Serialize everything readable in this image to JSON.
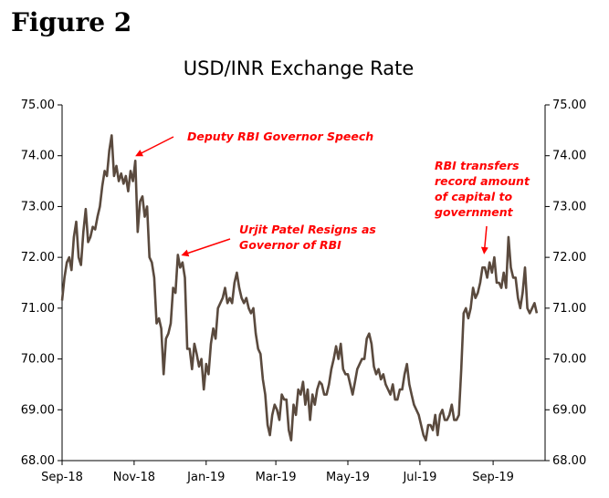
{
  "figure_label": "Figure 2",
  "chart_data": {
    "type": "line",
    "title": "USD/INR Exchange Rate",
    "xlabel": "",
    "ylabel": "",
    "ylim": [
      68.0,
      75.0
    ],
    "yticks": [
      "68.00",
      "69.00",
      "70.00",
      "71.00",
      "72.00",
      "73.00",
      "74.00",
      "75.00"
    ],
    "xlim": [
      "2018-09-01",
      "2019-10-15"
    ],
    "xticks": [
      {
        "date": "2018-09-01",
        "label": "Sep-18"
      },
      {
        "date": "2018-11-01",
        "label": "Nov-18"
      },
      {
        "date": "2019-01-01",
        "label": "Jan-19"
      },
      {
        "date": "2019-03-01",
        "label": "Mar-19"
      },
      {
        "date": "2019-05-01",
        "label": "May-19"
      },
      {
        "date": "2019-07-01",
        "label": "Jul-19"
      },
      {
        "date": "2019-09-01",
        "label": "Sep-19"
      }
    ],
    "series_color": "#5a4a3e",
    "annotation_color": "#ff0000",
    "series": [
      {
        "x": [
          "2018-09-01",
          "2018-09-03",
          "2018-09-05",
          "2018-09-07",
          "2018-09-09",
          "2018-09-11",
          "2018-09-13",
          "2018-09-15",
          "2018-09-17",
          "2018-09-19",
          "2018-09-21",
          "2018-09-23",
          "2018-09-25",
          "2018-09-27",
          "2018-09-29",
          "2018-10-01",
          "2018-10-03",
          "2018-10-05",
          "2018-10-07",
          "2018-10-09",
          "2018-10-11",
          "2018-10-13",
          "2018-10-15",
          "2018-10-17",
          "2018-10-19",
          "2018-10-21",
          "2018-10-23",
          "2018-10-25",
          "2018-10-27",
          "2018-10-29",
          "2018-10-31",
          "2018-11-02",
          "2018-11-04",
          "2018-11-06",
          "2018-11-08",
          "2018-11-10",
          "2018-11-12",
          "2018-11-14",
          "2018-11-16",
          "2018-11-18",
          "2018-11-20",
          "2018-11-22",
          "2018-11-24",
          "2018-11-26",
          "2018-11-28",
          "2018-11-30",
          "2018-12-02",
          "2018-12-04",
          "2018-12-06",
          "2018-12-08",
          "2018-12-10",
          "2018-12-12",
          "2018-12-14",
          "2018-12-16",
          "2018-12-18",
          "2018-12-20",
          "2018-12-22",
          "2018-12-24",
          "2018-12-26",
          "2018-12-28",
          "2018-12-30",
          "2019-01-01",
          "2019-01-03",
          "2019-01-05",
          "2019-01-07",
          "2019-01-09",
          "2019-01-11",
          "2019-01-13",
          "2019-01-15",
          "2019-01-17",
          "2019-01-19",
          "2019-01-21",
          "2019-01-23",
          "2019-01-25",
          "2019-01-27",
          "2019-01-29",
          "2019-01-31",
          "2019-02-02",
          "2019-02-04",
          "2019-02-06",
          "2019-02-08",
          "2019-02-10",
          "2019-02-12",
          "2019-02-14",
          "2019-02-16",
          "2019-02-18",
          "2019-02-20",
          "2019-02-22",
          "2019-02-24",
          "2019-02-26",
          "2019-02-28",
          "2019-03-02",
          "2019-03-04",
          "2019-03-06",
          "2019-03-08",
          "2019-03-10",
          "2019-03-12",
          "2019-03-14",
          "2019-03-16",
          "2019-03-18",
          "2019-03-20",
          "2019-03-22",
          "2019-03-24",
          "2019-03-26",
          "2019-03-28",
          "2019-03-30",
          "2019-04-01",
          "2019-04-03",
          "2019-04-05",
          "2019-04-07",
          "2019-04-09",
          "2019-04-11",
          "2019-04-13",
          "2019-04-15",
          "2019-04-17",
          "2019-04-19",
          "2019-04-21",
          "2019-04-23",
          "2019-04-25",
          "2019-04-27",
          "2019-04-29",
          "2019-05-01",
          "2019-05-03",
          "2019-05-05",
          "2019-05-07",
          "2019-05-09",
          "2019-05-11",
          "2019-05-13",
          "2019-05-15",
          "2019-05-17",
          "2019-05-19",
          "2019-05-21",
          "2019-05-23",
          "2019-05-25",
          "2019-05-27",
          "2019-05-29",
          "2019-05-31",
          "2019-06-02",
          "2019-06-04",
          "2019-06-06",
          "2019-06-08",
          "2019-06-10",
          "2019-06-12",
          "2019-06-14",
          "2019-06-16",
          "2019-06-18",
          "2019-06-20",
          "2019-06-22",
          "2019-06-24",
          "2019-06-26",
          "2019-06-28",
          "2019-06-30",
          "2019-07-02",
          "2019-07-04",
          "2019-07-06",
          "2019-07-08",
          "2019-07-10",
          "2019-07-12",
          "2019-07-14",
          "2019-07-16",
          "2019-07-18",
          "2019-07-20",
          "2019-07-22",
          "2019-07-24",
          "2019-07-26",
          "2019-07-28",
          "2019-07-30",
          "2019-08-01",
          "2019-08-03",
          "2019-08-05",
          "2019-08-07",
          "2019-08-09",
          "2019-08-11",
          "2019-08-13",
          "2019-08-15",
          "2019-08-17",
          "2019-08-19",
          "2019-08-21",
          "2019-08-23",
          "2019-08-25",
          "2019-08-27",
          "2019-08-29",
          "2019-08-31",
          "2019-09-02",
          "2019-09-04",
          "2019-09-06",
          "2019-09-08",
          "2019-09-10",
          "2019-09-12",
          "2019-09-14",
          "2019-09-16",
          "2019-09-18",
          "2019-09-20",
          "2019-09-22",
          "2019-09-24",
          "2019-09-26",
          "2019-09-28",
          "2019-09-30",
          "2019-10-02",
          "2019-10-04",
          "2019-10-06",
          "2019-10-08"
        ],
        "values": [
          71.15,
          71.6,
          71.9,
          72.0,
          71.75,
          72.4,
          72.7,
          72.0,
          71.85,
          72.5,
          72.95,
          72.3,
          72.4,
          72.6,
          72.55,
          72.8,
          73.0,
          73.4,
          73.7,
          73.6,
          74.1,
          74.4,
          73.6,
          73.8,
          73.5,
          73.65,
          73.45,
          73.6,
          73.3,
          73.7,
          73.5,
          73.9,
          72.5,
          73.1,
          73.2,
          72.8,
          73.0,
          72.0,
          71.9,
          71.6,
          70.7,
          70.8,
          70.6,
          69.7,
          70.4,
          70.5,
          70.7,
          71.4,
          71.3,
          72.05,
          71.8,
          71.9,
          71.6,
          70.2,
          70.2,
          69.8,
          70.3,
          70.1,
          69.85,
          70.0,
          69.4,
          69.9,
          69.7,
          70.3,
          70.6,
          70.4,
          71.0,
          71.1,
          71.2,
          71.4,
          71.1,
          71.2,
          71.1,
          71.5,
          71.7,
          71.4,
          71.2,
          71.1,
          71.2,
          71.0,
          70.9,
          71.0,
          70.5,
          70.2,
          70.1,
          69.6,
          69.3,
          68.7,
          68.5,
          68.9,
          69.1,
          69.0,
          68.8,
          69.3,
          69.2,
          69.2,
          68.6,
          68.4,
          69.1,
          68.9,
          69.4,
          69.3,
          69.55,
          69.1,
          69.4,
          68.8,
          69.3,
          69.1,
          69.4,
          69.55,
          69.5,
          69.3,
          69.3,
          69.5,
          69.8,
          70.0,
          70.25,
          70.0,
          70.3,
          69.8,
          69.7,
          69.7,
          69.5,
          69.3,
          69.55,
          69.8,
          69.9,
          70.0,
          70.0,
          70.4,
          70.5,
          70.3,
          69.85,
          69.7,
          69.8,
          69.6,
          69.7,
          69.5,
          69.4,
          69.3,
          69.5,
          69.2,
          69.2,
          69.4,
          69.4,
          69.7,
          69.9,
          69.5,
          69.3,
          69.1,
          69.0,
          68.9,
          68.7,
          68.5,
          68.4,
          68.7,
          68.7,
          68.6,
          68.9,
          68.5,
          68.9,
          69.0,
          68.8,
          68.8,
          68.9,
          69.1,
          68.8,
          68.8,
          68.9,
          69.8,
          70.9,
          71.0,
          70.8,
          71.0,
          71.4,
          71.2,
          71.3,
          71.5,
          71.8,
          71.8,
          71.6,
          71.9,
          71.7,
          72.0,
          71.5,
          71.5,
          71.4,
          71.7,
          71.4,
          72.4,
          71.8,
          71.6,
          71.6,
          71.2,
          71.0,
          71.3,
          71.8,
          71.0,
          70.9,
          71.0,
          71.1,
          70.9
        ]
      }
    ],
    "annotations": [
      {
        "text": "Deputy RBI Governor Speech",
        "date": "2018-11-01",
        "value": 73.97
      },
      {
        "lines": [
          "Urjit Patel Resigns as",
          "Governor of RBI"
        ],
        "date": "2018-12-10",
        "value": 72.05
      },
      {
        "lines": [
          "RBI transfers",
          "record amount",
          "of capital to",
          "government"
        ],
        "date": "2019-08-26",
        "value": 71.95
      }
    ]
  }
}
